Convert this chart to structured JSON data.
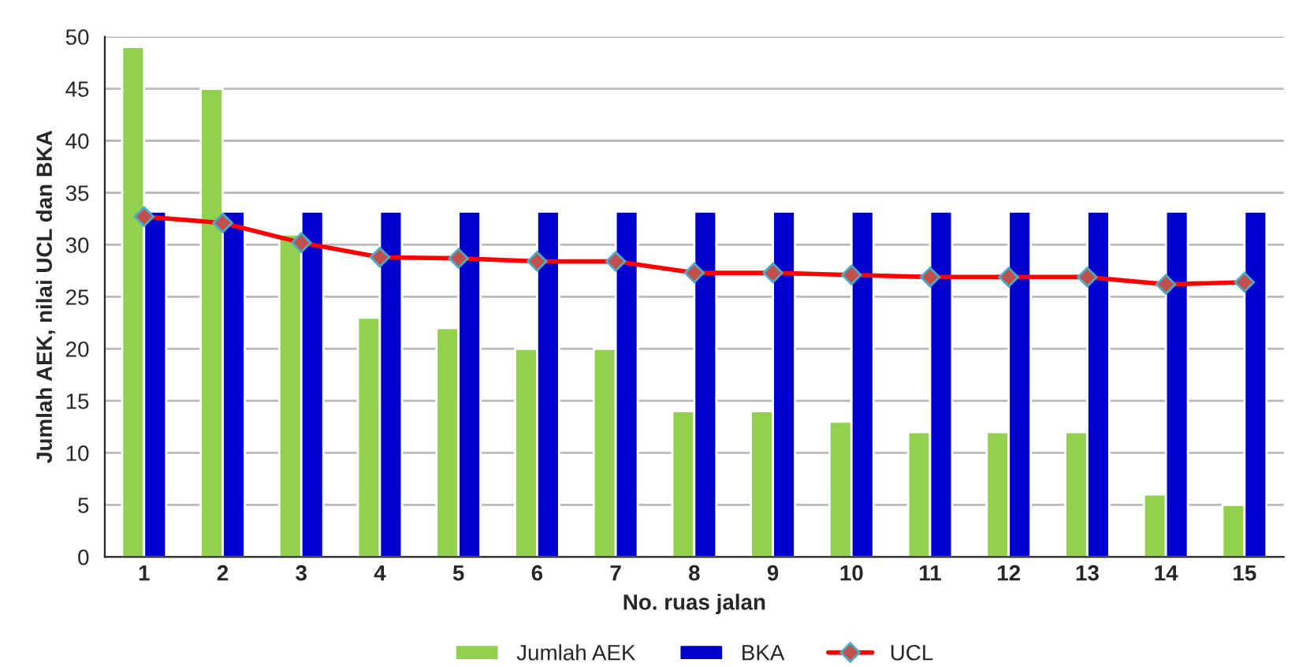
{
  "chart_data": {
    "type": "bar",
    "xlabel": "No. ruas jalan",
    "ylabel": "Jumlah AEK, nilai UCL dan BKA",
    "categories": [
      "1",
      "2",
      "3",
      "4",
      "5",
      "6",
      "7",
      "8",
      "9",
      "10",
      "11",
      "12",
      "13",
      "14",
      "15"
    ],
    "series": [
      {
        "name": "Jumlah AEK",
        "color": "#92d050",
        "values": [
          49,
          45,
          31,
          23,
          22,
          20,
          20,
          14,
          14,
          13,
          12,
          12,
          12,
          6,
          5
        ]
      },
      {
        "name": "BKA",
        "color": "#0000cc",
        "values": [
          33.2,
          33.2,
          33.2,
          33.2,
          33.2,
          33.2,
          33.2,
          33.2,
          33.2,
          33.2,
          33.2,
          33.2,
          33.2,
          33.2,
          33.2
        ]
      },
      {
        "name": "UCL",
        "type": "line",
        "color": "#ff0000",
        "marker": "diamond",
        "values": [
          32.7,
          32.1,
          30.2,
          28.8,
          28.7,
          28.4,
          28.4,
          27.3,
          27.3,
          27.1,
          26.9,
          26.9,
          26.9,
          26.2,
          26.4
        ]
      }
    ],
    "ylim": [
      0,
      50
    ],
    "yticks": [
      0,
      5,
      10,
      15,
      20,
      25,
      30,
      35,
      40,
      45,
      50
    ],
    "grid": "y",
    "legend": "bottom"
  }
}
